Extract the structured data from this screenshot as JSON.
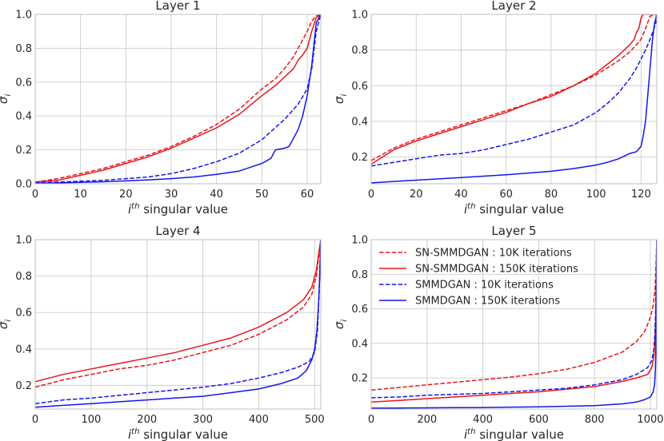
{
  "chart_data": [
    {
      "type": "line",
      "title": "Layer 1",
      "xlabel_base": "i",
      "xlabel_sup": "th",
      "xlabel_rest": " singular value",
      "ylabel_base": "σ",
      "ylabel_sub": "i",
      "xlim": [
        0,
        63
      ],
      "ylim": [
        0,
        1.0
      ],
      "xticks": [
        0,
        10,
        20,
        30,
        40,
        50,
        60
      ],
      "yticks": [
        0.0,
        0.2,
        0.4,
        0.6,
        0.8,
        1.0
      ],
      "ytick_labels": [
        "0.0",
        "0.2",
        "0.4",
        "0.6",
        "0.8",
        "1.0"
      ],
      "series": [
        {
          "name": "SN-SMMDGAN : 10K iterations",
          "color": "#e8151b",
          "dash": "dashed",
          "x": [
            0,
            5,
            10,
            15,
            20,
            25,
            30,
            35,
            40,
            45,
            50,
            53,
            55,
            57,
            58,
            60,
            61,
            62,
            63
          ],
          "y": [
            0.01,
            0.03,
            0.06,
            0.09,
            0.13,
            0.17,
            0.22,
            0.28,
            0.35,
            0.44,
            0.56,
            0.62,
            0.68,
            0.75,
            0.8,
            0.9,
            0.96,
            0.99,
            1.0
          ]
        },
        {
          "name": "SN-SMMDGAN : 150K iterations",
          "color": "#e8151b",
          "dash": "solid",
          "x": [
            0,
            5,
            10,
            15,
            20,
            25,
            30,
            35,
            40,
            45,
            50,
            53,
            55,
            57,
            58,
            59,
            60,
            61,
            62,
            63
          ],
          "y": [
            0.01,
            0.02,
            0.05,
            0.08,
            0.12,
            0.16,
            0.21,
            0.27,
            0.33,
            0.41,
            0.52,
            0.58,
            0.63,
            0.68,
            0.73,
            0.76,
            0.8,
            0.9,
            0.98,
            1.0
          ]
        },
        {
          "name": "SMMDGAN : 10K iterations",
          "color": "#1516e8",
          "dash": "dashed",
          "x": [
            0,
            5,
            10,
            15,
            20,
            25,
            30,
            35,
            40,
            45,
            50,
            55,
            58,
            60,
            61,
            62,
            63
          ],
          "y": [
            0.005,
            0.01,
            0.015,
            0.02,
            0.03,
            0.04,
            0.06,
            0.09,
            0.13,
            0.18,
            0.26,
            0.38,
            0.47,
            0.56,
            0.68,
            0.9,
            1.0
          ]
        },
        {
          "name": "SMMDGAN : 150K iterations",
          "color": "#1516e8",
          "dash": "solid",
          "x": [
            0,
            5,
            10,
            15,
            20,
            25,
            30,
            35,
            40,
            45,
            50,
            52,
            53,
            55,
            56,
            57,
            58,
            59,
            60,
            61,
            62,
            63
          ],
          "y": [
            0.003,
            0.005,
            0.008,
            0.012,
            0.017,
            0.023,
            0.03,
            0.04,
            0.055,
            0.075,
            0.12,
            0.15,
            0.2,
            0.21,
            0.22,
            0.27,
            0.32,
            0.4,
            0.52,
            0.7,
            0.95,
            1.0
          ]
        }
      ]
    },
    {
      "type": "line",
      "title": "Layer 2",
      "xlabel_base": "i",
      "xlabel_sup": "th",
      "xlabel_rest": " singular value",
      "ylabel_base": "σ",
      "ylabel_sub": "i",
      "xlim": [
        0,
        127
      ],
      "ylim": [
        0.05,
        1.0
      ],
      "xticks": [
        0,
        20,
        40,
        60,
        80,
        100,
        120
      ],
      "yticks": [
        0.2,
        0.4,
        0.6,
        0.8,
        1.0
      ],
      "ytick_labels": [
        "0.2",
        "0.4",
        "0.6",
        "0.8",
        "1.0"
      ],
      "series": [
        {
          "name": "SN-SMMDGAN : 10K iterations",
          "color": "#e8151b",
          "dash": "dashed",
          "x": [
            0,
            10,
            20,
            30,
            40,
            50,
            60,
            70,
            80,
            90,
            100,
            110,
            115,
            118,
            120,
            122,
            124,
            127
          ],
          "y": [
            0.18,
            0.25,
            0.3,
            0.34,
            0.38,
            0.42,
            0.46,
            0.5,
            0.55,
            0.6,
            0.66,
            0.74,
            0.79,
            0.83,
            0.86,
            0.92,
            0.99,
            1.0
          ]
        },
        {
          "name": "SN-SMMDGAN : 150K iterations",
          "color": "#e8151b",
          "dash": "solid",
          "x": [
            0,
            10,
            20,
            30,
            40,
            50,
            60,
            70,
            80,
            90,
            100,
            110,
            115,
            117,
            118,
            119,
            120,
            121,
            127
          ],
          "y": [
            0.16,
            0.24,
            0.29,
            0.33,
            0.37,
            0.41,
            0.45,
            0.5,
            0.54,
            0.6,
            0.67,
            0.77,
            0.83,
            0.86,
            0.9,
            0.92,
            0.98,
            1.0,
            1.0
          ]
        },
        {
          "name": "SMMDGAN : 10K iterations",
          "color": "#1516e8",
          "dash": "dashed",
          "x": [
            0,
            10,
            20,
            30,
            40,
            50,
            60,
            70,
            80,
            90,
            100,
            105,
            110,
            115,
            118,
            120,
            122,
            124,
            126,
            127
          ],
          "y": [
            0.15,
            0.17,
            0.19,
            0.21,
            0.22,
            0.24,
            0.27,
            0.3,
            0.34,
            0.38,
            0.45,
            0.5,
            0.56,
            0.64,
            0.7,
            0.75,
            0.8,
            0.86,
            0.93,
            0.97
          ]
        },
        {
          "name": "SMMDGAN : 150K iterations",
          "color": "#1516e8",
          "dash": "solid",
          "x": [
            0,
            20,
            40,
            60,
            80,
            90,
            100,
            105,
            110,
            115,
            118,
            120,
            121,
            122,
            123,
            124,
            125,
            126,
            127
          ],
          "y": [
            0.055,
            0.07,
            0.085,
            0.1,
            0.12,
            0.135,
            0.155,
            0.17,
            0.19,
            0.22,
            0.23,
            0.26,
            0.32,
            0.4,
            0.55,
            0.7,
            0.85,
            0.95,
            1.0
          ]
        }
      ]
    },
    {
      "type": "line",
      "title": "Layer 4",
      "xlabel_base": "i",
      "xlabel_sup": "th",
      "xlabel_rest": " singular value",
      "ylabel_base": "σ",
      "ylabel_sub": "i",
      "xlim": [
        0,
        511
      ],
      "ylim": [
        0.07,
        1.0
      ],
      "xticks": [
        0,
        100,
        200,
        300,
        400,
        500
      ],
      "yticks": [
        0.2,
        0.4,
        0.6,
        0.8,
        1.0
      ],
      "ytick_labels": [
        "0.2",
        "0.4",
        "0.6",
        "0.8",
        "1.0"
      ],
      "series": [
        {
          "name": "SN-SMMDGAN : 10K iterations",
          "color": "#e8151b",
          "dash": "dashed",
          "x": [
            0,
            50,
            100,
            150,
            200,
            250,
            300,
            350,
            400,
            450,
            480,
            495,
            503,
            507,
            511
          ],
          "y": [
            0.19,
            0.23,
            0.26,
            0.29,
            0.31,
            0.34,
            0.38,
            0.42,
            0.48,
            0.56,
            0.63,
            0.7,
            0.8,
            0.9,
            1.0
          ]
        },
        {
          "name": "SN-SMMDGAN : 150K iterations",
          "color": "#e8151b",
          "dash": "solid",
          "x": [
            0,
            50,
            100,
            150,
            200,
            250,
            300,
            350,
            400,
            450,
            480,
            495,
            503,
            507,
            511
          ],
          "y": [
            0.22,
            0.26,
            0.29,
            0.32,
            0.35,
            0.38,
            0.42,
            0.46,
            0.52,
            0.6,
            0.67,
            0.74,
            0.83,
            0.92,
            1.0
          ]
        },
        {
          "name": "SMMDGAN : 10K iterations",
          "color": "#1516e8",
          "dash": "dashed",
          "x": [
            0,
            50,
            100,
            150,
            200,
            250,
            300,
            350,
            400,
            440,
            470,
            490,
            500,
            505,
            508,
            511
          ],
          "y": [
            0.1,
            0.12,
            0.13,
            0.145,
            0.16,
            0.175,
            0.19,
            0.21,
            0.24,
            0.27,
            0.3,
            0.33,
            0.38,
            0.5,
            0.7,
            1.0
          ]
        },
        {
          "name": "SMMDGAN : 150K iterations",
          "color": "#1516e8",
          "dash": "solid",
          "x": [
            0,
            50,
            100,
            150,
            200,
            250,
            300,
            350,
            400,
            440,
            470,
            485,
            495,
            500,
            504,
            507,
            509,
            511
          ],
          "y": [
            0.08,
            0.09,
            0.1,
            0.11,
            0.12,
            0.13,
            0.14,
            0.16,
            0.18,
            0.21,
            0.24,
            0.28,
            0.34,
            0.4,
            0.5,
            0.65,
            0.8,
            1.0
          ]
        }
      ]
    },
    {
      "type": "line",
      "title": "Layer 5",
      "xlabel_base": "i",
      "xlabel_sup": "th",
      "xlabel_rest": " singular value",
      "ylabel_base": "σ",
      "ylabel_sub": "i",
      "xlim": [
        0,
        1023
      ],
      "ylim": [
        0.02,
        1.0
      ],
      "xticks": [
        0,
        200,
        400,
        600,
        800,
        1000
      ],
      "yticks": [
        0.2,
        0.4,
        0.6,
        0.8,
        1.0
      ],
      "ytick_labels": [
        "0.2",
        "0.4",
        "0.6",
        "0.8",
        "1.0"
      ],
      "legend_position": "top-left",
      "series": [
        {
          "name": "SN-SMMDGAN : 10K iterations",
          "color": "#e8151b",
          "dash": "dashed",
          "x": [
            0,
            100,
            200,
            300,
            400,
            500,
            600,
            700,
            800,
            900,
            950,
            980,
            1000,
            1010,
            1017,
            1020,
            1023
          ],
          "y": [
            0.13,
            0.145,
            0.16,
            0.175,
            0.19,
            0.205,
            0.225,
            0.25,
            0.29,
            0.35,
            0.41,
            0.47,
            0.55,
            0.62,
            0.72,
            0.85,
            1.0
          ]
        },
        {
          "name": "SN-SMMDGAN : 150K iterations",
          "color": "#e8151b",
          "dash": "solid",
          "x": [
            0,
            100,
            200,
            300,
            400,
            500,
            600,
            700,
            800,
            900,
            950,
            990,
            1005,
            1012,
            1016,
            1019,
            1021,
            1023
          ],
          "y": [
            0.06,
            0.07,
            0.08,
            0.09,
            0.1,
            0.11,
            0.12,
            0.135,
            0.15,
            0.18,
            0.2,
            0.22,
            0.26,
            0.32,
            0.4,
            0.55,
            0.75,
            1.0
          ]
        },
        {
          "name": "SMMDGAN : 10K iterations",
          "color": "#1516e8",
          "dash": "dashed",
          "x": [
            0,
            100,
            200,
            300,
            400,
            500,
            600,
            700,
            800,
            900,
            950,
            990,
            1005,
            1012,
            1016,
            1019,
            1021,
            1023
          ],
          "y": [
            0.085,
            0.09,
            0.1,
            0.105,
            0.11,
            0.12,
            0.13,
            0.14,
            0.16,
            0.19,
            0.22,
            0.26,
            0.3,
            0.36,
            0.45,
            0.6,
            0.8,
            1.0
          ]
        },
        {
          "name": "SMMDGAN : 150K iterations",
          "color": "#1516e8",
          "dash": "solid",
          "x": [
            0,
            100,
            200,
            300,
            400,
            500,
            600,
            700,
            800,
            900,
            950,
            980,
            1000,
            1010,
            1015,
            1018,
            1020,
            1022,
            1023
          ],
          "y": [
            0.025,
            0.026,
            0.027,
            0.028,
            0.029,
            0.031,
            0.033,
            0.036,
            0.04,
            0.05,
            0.06,
            0.075,
            0.09,
            0.12,
            0.16,
            0.25,
            0.4,
            0.7,
            1.0
          ]
        }
      ]
    }
  ]
}
